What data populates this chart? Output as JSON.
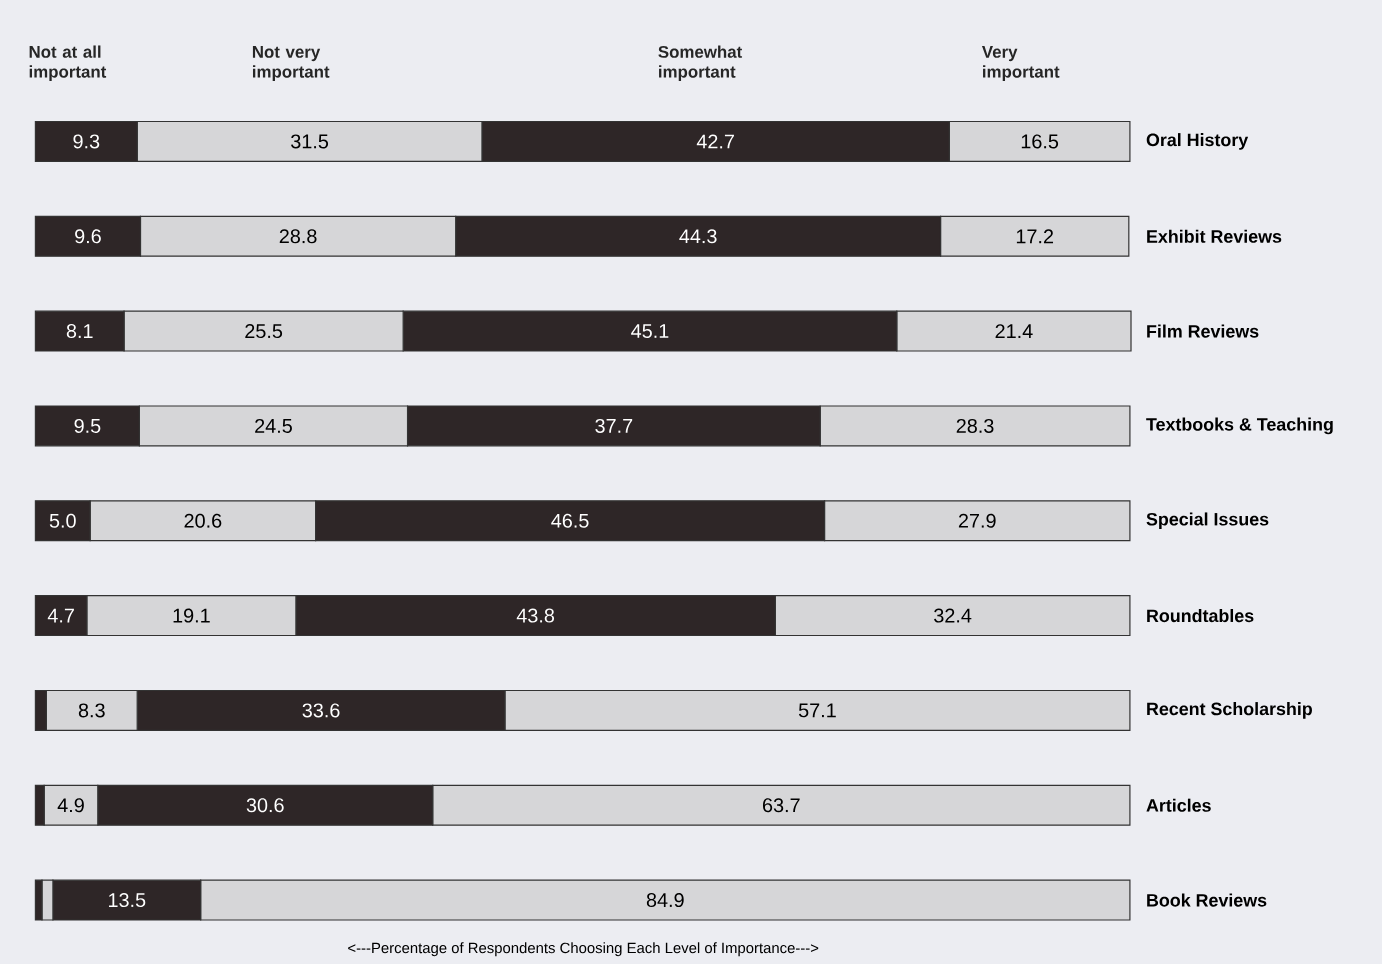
{
  "chart_data": {
    "type": "bar",
    "orientation": "horizontal",
    "stacked": true,
    "legend": "top",
    "xlabel": "<---Percentage of Respondents Choosing Each Level of Importance--->",
    "categories": [
      "Oral History",
      "Exhibit Reviews",
      "Film Reviews",
      "Textbooks & Teaching",
      "Special Issues",
      "Roundtables",
      "Recent Scholarship",
      "Articles",
      "Book Reviews"
    ],
    "series": [
      {
        "name": "Not at all important",
        "color": "#2e2627",
        "values": [
          9.3,
          9.6,
          8.1,
          9.5,
          5.0,
          4.7,
          1.0,
          0.8,
          0.6
        ],
        "value_labels": [
          "9.3",
          "9.6",
          "8.1",
          "9.5",
          "5.0",
          "4.7",
          null,
          null,
          null
        ]
      },
      {
        "name": "Not very important",
        "color": "#d6d6d8",
        "values": [
          31.5,
          28.8,
          25.5,
          24.5,
          20.6,
          19.1,
          8.3,
          4.9,
          1.0
        ],
        "value_labels": [
          "31.5",
          "28.8",
          "25.5",
          "24.5",
          "20.6",
          "19.1",
          "8.3",
          "4.9",
          null
        ]
      },
      {
        "name": "Somewhat important",
        "color": "#2e2627",
        "values": [
          42.7,
          44.3,
          45.1,
          37.7,
          46.5,
          43.8,
          33.6,
          30.6,
          13.5
        ],
        "value_labels": [
          "42.7",
          "44.3",
          "45.1",
          "37.7",
          "46.5",
          "43.8",
          "33.6",
          "30.6",
          "13.5"
        ]
      },
      {
        "name": "Very important",
        "color": "#d6d6d8",
        "values": [
          16.5,
          17.2,
          21.4,
          28.3,
          27.9,
          32.4,
          57.1,
          63.7,
          84.9
        ],
        "value_labels": [
          "16.5",
          "17.2",
          "21.4",
          "28.3",
          "27.9",
          "32.4",
          "57.1",
          "63.7",
          "84.9"
        ]
      }
    ]
  }
}
